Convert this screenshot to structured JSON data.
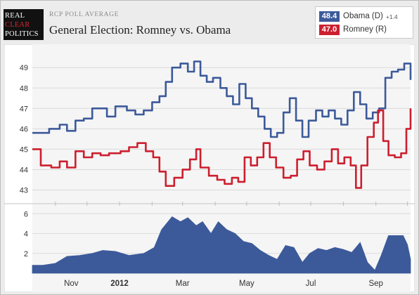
{
  "header": {
    "logo_lines": [
      "REAL",
      "CLEAR",
      "POLITICS"
    ],
    "subtitle": "RCP POLL AVERAGE",
    "title": "General Election: Romney vs. Obama"
  },
  "legend": [
    {
      "value": "48.4",
      "name": "Obama (D)",
      "change": "+1.4",
      "color": "#3c5a9a"
    },
    {
      "value": "47.0",
      "name": "Romney (R)",
      "change": "",
      "color": "#cc1f2f"
    }
  ],
  "chart_data": [
    {
      "type": "line",
      "title": "",
      "xlabel": "",
      "ylabel": "",
      "ylim": [
        42.5,
        49.8
      ],
      "yticks": [
        "43",
        "44",
        "45",
        "46",
        "47",
        "48",
        "49"
      ],
      "x_ticks": [
        "Nov",
        "2012",
        "Mar",
        "May",
        "Jul",
        "Sep"
      ],
      "x_range": [
        "2011-10-10",
        "2012-10-04"
      ],
      "grid": true,
      "series": [
        {
          "name": "Obama (D)",
          "color": "#3c5a9a",
          "points": [
            [
              "2011-10-10",
              45.8
            ],
            [
              "2011-10-20",
              45.8
            ],
            [
              "2011-10-26",
              46.0
            ],
            [
              "2011-11-01",
              46.0
            ],
            [
              "2011-11-05",
              46.2
            ],
            [
              "2011-11-12",
              45.9
            ],
            [
              "2011-11-20",
              46.4
            ],
            [
              "2011-11-28",
              46.5
            ],
            [
              "2011-12-06",
              47.0
            ],
            [
              "2011-12-14",
              47.0
            ],
            [
              "2011-12-20",
              46.6
            ],
            [
              "2011-12-28",
              47.1
            ],
            [
              "2012-01-08",
              46.9
            ],
            [
              "2012-01-16",
              46.7
            ],
            [
              "2012-01-24",
              46.9
            ],
            [
              "2012-02-01",
              47.3
            ],
            [
              "2012-02-08",
              47.6
            ],
            [
              "2012-02-14",
              48.3
            ],
            [
              "2012-02-20",
              49.0
            ],
            [
              "2012-02-28",
              49.2
            ],
            [
              "2012-03-06",
              48.8
            ],
            [
              "2012-03-12",
              49.3
            ],
            [
              "2012-03-18",
              48.6
            ],
            [
              "2012-03-24",
              48.3
            ],
            [
              "2012-03-30",
              48.5
            ],
            [
              "2012-04-06",
              48.0
            ],
            [
              "2012-04-12",
              47.6
            ],
            [
              "2012-04-18",
              47.2
            ],
            [
              "2012-04-24",
              48.2
            ],
            [
              "2012-04-30",
              47.5
            ],
            [
              "2012-05-06",
              47.0
            ],
            [
              "2012-05-12",
              46.6
            ],
            [
              "2012-05-18",
              46.0
            ],
            [
              "2012-05-24",
              45.6
            ],
            [
              "2012-05-30",
              45.8
            ],
            [
              "2012-06-05",
              46.8
            ],
            [
              "2012-06-11",
              47.5
            ],
            [
              "2012-06-17",
              46.4
            ],
            [
              "2012-06-23",
              45.6
            ],
            [
              "2012-06-29",
              46.4
            ],
            [
              "2012-07-06",
              46.9
            ],
            [
              "2012-07-12",
              46.6
            ],
            [
              "2012-07-18",
              46.9
            ],
            [
              "2012-07-24",
              46.5
            ],
            [
              "2012-07-30",
              46.2
            ],
            [
              "2012-08-05",
              46.9
            ],
            [
              "2012-08-11",
              47.8
            ],
            [
              "2012-08-17",
              47.2
            ],
            [
              "2012-08-23",
              46.5
            ],
            [
              "2012-08-29",
              46.8
            ],
            [
              "2012-09-04",
              47.0
            ],
            [
              "2012-09-10",
              48.5
            ],
            [
              "2012-09-16",
              48.8
            ],
            [
              "2012-09-22",
              48.9
            ],
            [
              "2012-09-28",
              49.2
            ],
            [
              "2012-10-04",
              48.4
            ]
          ]
        },
        {
          "name": "Romney (R)",
          "color": "#cc1f2f",
          "points": [
            [
              "2011-10-10",
              45.0
            ],
            [
              "2011-10-16",
              45.0
            ],
            [
              "2011-10-18",
              44.2
            ],
            [
              "2011-10-28",
              44.1
            ],
            [
              "2011-11-05",
              44.4
            ],
            [
              "2011-11-12",
              44.1
            ],
            [
              "2011-11-20",
              44.9
            ],
            [
              "2011-11-28",
              44.6
            ],
            [
              "2011-12-06",
              44.8
            ],
            [
              "2011-12-14",
              44.7
            ],
            [
              "2011-12-22",
              44.8
            ],
            [
              "2012-01-02",
              44.9
            ],
            [
              "2012-01-10",
              45.1
            ],
            [
              "2012-01-18",
              45.3
            ],
            [
              "2012-01-26",
              44.9
            ],
            [
              "2012-02-02",
              44.6
            ],
            [
              "2012-02-08",
              43.9
            ],
            [
              "2012-02-14",
              43.2
            ],
            [
              "2012-02-22",
              43.6
            ],
            [
              "2012-03-01",
              44.0
            ],
            [
              "2012-03-08",
              44.5
            ],
            [
              "2012-03-14",
              45.0
            ],
            [
              "2012-03-18",
              44.1
            ],
            [
              "2012-03-26",
              43.7
            ],
            [
              "2012-04-03",
              43.5
            ],
            [
              "2012-04-10",
              43.3
            ],
            [
              "2012-04-17",
              43.6
            ],
            [
              "2012-04-23",
              43.4
            ],
            [
              "2012-04-29",
              44.6
            ],
            [
              "2012-05-05",
              44.2
            ],
            [
              "2012-05-11",
              44.6
            ],
            [
              "2012-05-17",
              45.3
            ],
            [
              "2012-05-23",
              44.6
            ],
            [
              "2012-05-29",
              44.1
            ],
            [
              "2012-06-05",
              43.6
            ],
            [
              "2012-06-12",
              43.7
            ],
            [
              "2012-06-18",
              44.5
            ],
            [
              "2012-06-24",
              44.9
            ],
            [
              "2012-06-30",
              44.2
            ],
            [
              "2012-07-07",
              44.0
            ],
            [
              "2012-07-14",
              44.4
            ],
            [
              "2012-07-21",
              45.0
            ],
            [
              "2012-07-27",
              44.3
            ],
            [
              "2012-08-02",
              44.6
            ],
            [
              "2012-08-08",
              44.2
            ],
            [
              "2012-08-13",
              43.1
            ],
            [
              "2012-08-18",
              44.2
            ],
            [
              "2012-08-24",
              45.6
            ],
            [
              "2012-08-30",
              46.3
            ],
            [
              "2012-09-03",
              46.9
            ],
            [
              "2012-09-08",
              45.4
            ],
            [
              "2012-09-13",
              44.7
            ],
            [
              "2012-09-19",
              44.6
            ],
            [
              "2012-09-25",
              44.8
            ],
            [
              "2012-09-30",
              46.0
            ],
            [
              "2012-10-04",
              47.0
            ]
          ]
        }
      ]
    },
    {
      "type": "area",
      "title": "",
      "ylabel": "",
      "ylim": [
        0,
        6.8
      ],
      "yticks": [
        "2",
        "4",
        "6"
      ],
      "color": "#3c5a9a",
      "series": [
        {
          "name": "",
          "points": [
            [
              "2011-10-10",
              0.8
            ],
            [
              "2011-10-20",
              0.8
            ],
            [
              "2011-11-01",
              1.0
            ],
            [
              "2011-11-12",
              1.7
            ],
            [
              "2011-11-24",
              1.8
            ],
            [
              "2011-12-06",
              2.0
            ],
            [
              "2011-12-16",
              2.3
            ],
            [
              "2011-12-28",
              2.2
            ],
            [
              "2012-01-10",
              1.8
            ],
            [
              "2012-01-24",
              2.0
            ],
            [
              "2012-02-03",
              2.6
            ],
            [
              "2012-02-10",
              4.4
            ],
            [
              "2012-02-20",
              5.7
            ],
            [
              "2012-02-28",
              5.2
            ],
            [
              "2012-03-06",
              5.6
            ],
            [
              "2012-03-14",
              4.8
            ],
            [
              "2012-03-20",
              5.2
            ],
            [
              "2012-03-28",
              4.0
            ],
            [
              "2012-04-04",
              5.2
            ],
            [
              "2012-04-12",
              4.4
            ],
            [
              "2012-04-20",
              4.0
            ],
            [
              "2012-04-28",
              3.2
            ],
            [
              "2012-05-06",
              3.0
            ],
            [
              "2012-05-14",
              2.3
            ],
            [
              "2012-05-22",
              1.8
            ],
            [
              "2012-05-30",
              1.4
            ],
            [
              "2012-06-07",
              2.8
            ],
            [
              "2012-06-15",
              2.6
            ],
            [
              "2012-06-23",
              1.1
            ],
            [
              "2012-06-30",
              2.0
            ],
            [
              "2012-07-08",
              2.5
            ],
            [
              "2012-07-16",
              2.3
            ],
            [
              "2012-07-24",
              2.6
            ],
            [
              "2012-08-01",
              2.4
            ],
            [
              "2012-08-09",
              2.1
            ],
            [
              "2012-08-17",
              3.1
            ],
            [
              "2012-08-24",
              1.1
            ],
            [
              "2012-08-31",
              0.3
            ],
            [
              "2012-09-06",
              1.8
            ],
            [
              "2012-09-13",
              3.8
            ],
            [
              "2012-09-20",
              3.8
            ],
            [
              "2012-09-27",
              3.8
            ],
            [
              "2012-10-01",
              2.9
            ],
            [
              "2012-10-04",
              1.4
            ]
          ]
        }
      ]
    }
  ]
}
